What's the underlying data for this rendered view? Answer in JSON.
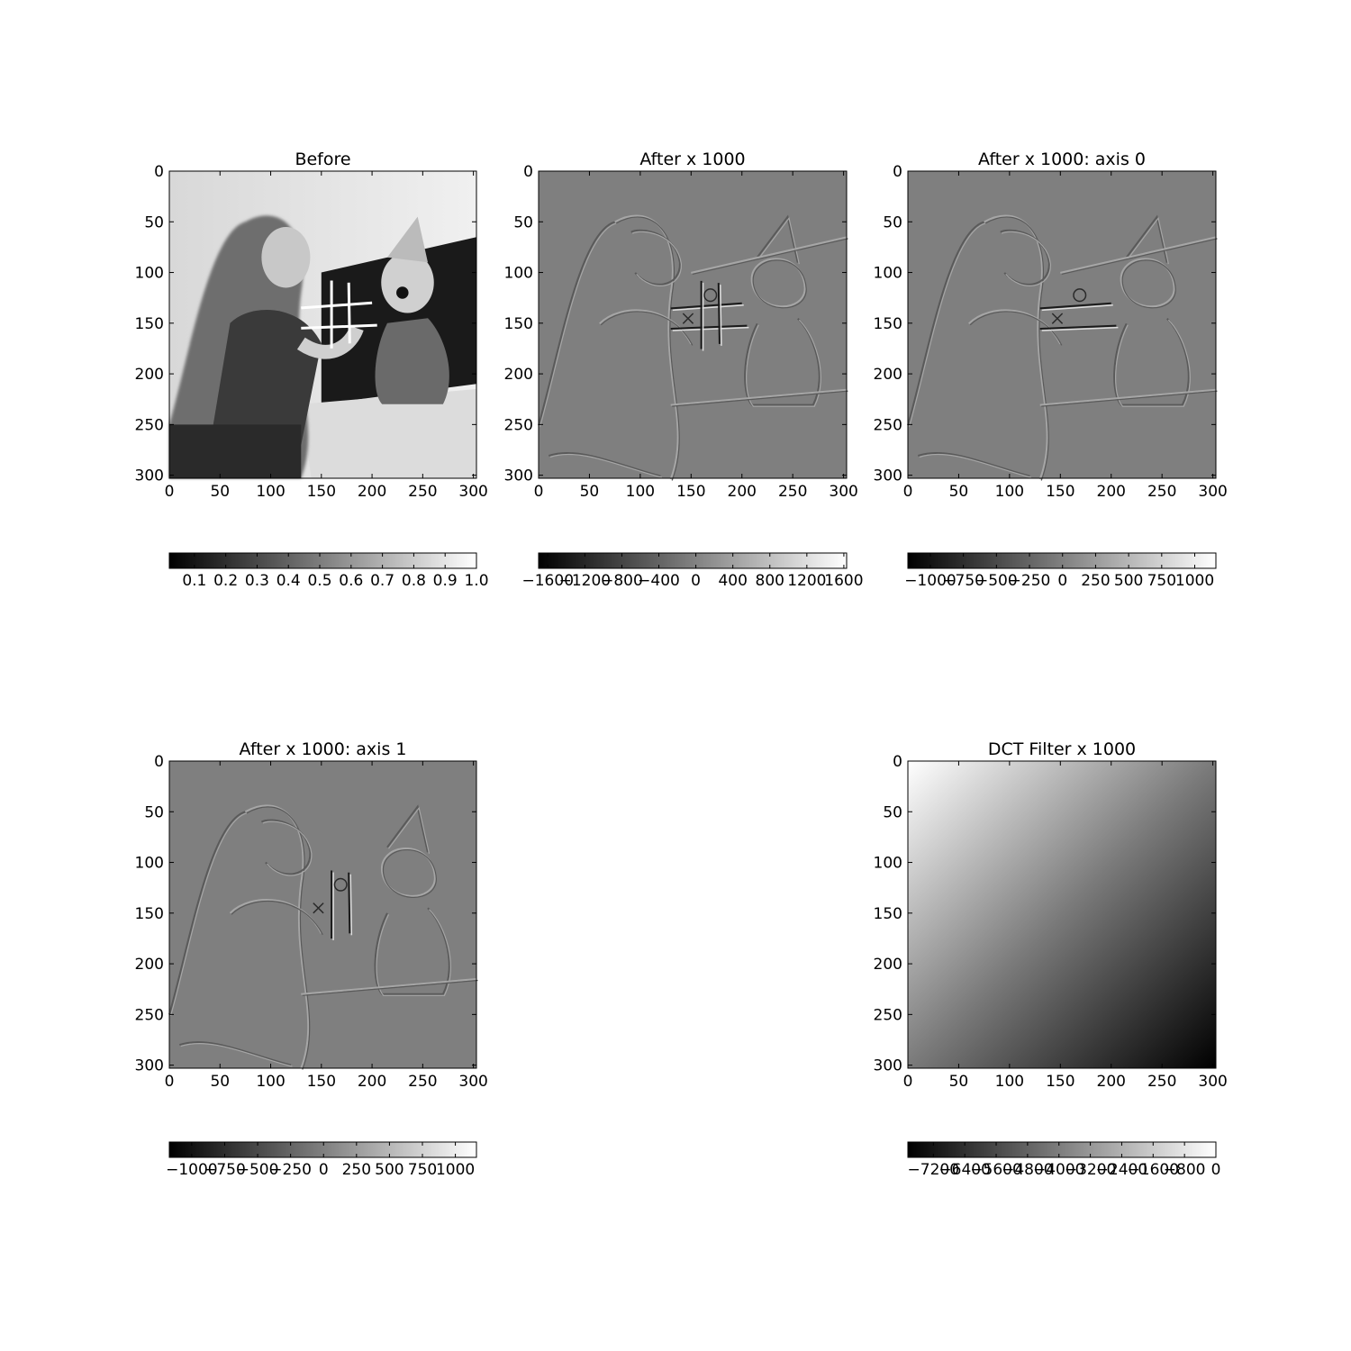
{
  "figure": {
    "background": "#ffffff"
  },
  "chart_data": [
    {
      "type": "heatmap",
      "title": "Before",
      "image": "grayscale photograph: girl with clown doll next to a tic-tac-toe board",
      "xlim": [
        0,
        303
      ],
      "ylim": [
        303,
        0
      ],
      "xticks": [
        0,
        50,
        100,
        150,
        200,
        250,
        300
      ],
      "yticks": [
        0,
        50,
        100,
        150,
        200,
        250,
        300
      ],
      "colormap": "gray",
      "colorbar": {
        "orientation": "horizontal",
        "range": [
          0.02,
          1.0
        ],
        "ticks": [
          0.1,
          0.2,
          0.3,
          0.4,
          0.5,
          0.6,
          0.7,
          0.8,
          0.9,
          1.0
        ],
        "tick_labels": [
          "0.1",
          "0.2",
          "0.3",
          "0.4",
          "0.5",
          "0.6",
          "0.7",
          "0.8",
          "0.9",
          "1.0"
        ]
      }
    },
    {
      "type": "heatmap",
      "title": "After x 1000",
      "image": "edge response of the photograph on a mid-gray background",
      "xlim": [
        0,
        303
      ],
      "ylim": [
        303,
        0
      ],
      "xticks": [
        0,
        50,
        100,
        150,
        200,
        250,
        300
      ],
      "yticks": [
        0,
        50,
        100,
        150,
        200,
        250,
        300
      ],
      "colormap": "gray",
      "colorbar": {
        "orientation": "horizontal",
        "range": [
          -1700,
          1630
        ],
        "ticks": [
          -1600,
          -1200,
          -800,
          -400,
          0,
          400,
          800,
          1200,
          1600
        ],
        "tick_labels": [
          "−1600",
          "−1200",
          "−800",
          "−400",
          "0",
          "400",
          "800",
          "1200",
          "1600"
        ]
      }
    },
    {
      "type": "heatmap",
      "title": "After x 1000: axis 0",
      "image": "horizontal-edge response on a mid-gray background",
      "xlim": [
        0,
        303
      ],
      "ylim": [
        303,
        0
      ],
      "xticks": [
        0,
        50,
        100,
        150,
        200,
        250,
        300
      ],
      "yticks": [
        0,
        50,
        100,
        150,
        200,
        250,
        300
      ],
      "colormap": "gray",
      "colorbar": {
        "orientation": "horizontal",
        "range": [
          -1170,
          1160
        ],
        "ticks": [
          -1000,
          -750,
          -500,
          -250,
          0,
          250,
          500,
          750,
          1000
        ],
        "tick_labels": [
          "−1000",
          "−750",
          "−500",
          "−250",
          "0",
          "250",
          "500",
          "750",
          "1000"
        ]
      }
    },
    {
      "type": "heatmap",
      "title": "After x 1000: axis 1",
      "image": "vertical-edge response on a mid-gray background",
      "xlim": [
        0,
        303
      ],
      "ylim": [
        303,
        0
      ],
      "xticks": [
        0,
        50,
        100,
        150,
        200,
        250,
        300
      ],
      "yticks": [
        0,
        50,
        100,
        150,
        200,
        250,
        300
      ],
      "colormap": "gray",
      "colorbar": {
        "orientation": "horizontal",
        "range": [
          -1170,
          1160
        ],
        "ticks": [
          -1000,
          -750,
          -500,
          -250,
          0,
          250,
          500,
          750,
          1000
        ],
        "tick_labels": [
          "−1000",
          "−750",
          "−500",
          "−250",
          "0",
          "250",
          "500",
          "750",
          "1000"
        ]
      }
    },
    {
      "type": "heatmap",
      "title": "DCT Filter x 1000",
      "image": "smooth diagonal gradient, white at top-left to black at bottom-right",
      "xlim": [
        0,
        303
      ],
      "ylim": [
        303,
        0
      ],
      "xticks": [
        0,
        50,
        100,
        150,
        200,
        250,
        300
      ],
      "yticks": [
        0,
        50,
        100,
        150,
        200,
        250,
        300
      ],
      "colormap": "gray",
      "colorbar": {
        "orientation": "horizontal",
        "range": [
          -7850,
          0
        ],
        "ticks": [
          -7200,
          -6400,
          -5600,
          -4800,
          -4000,
          -3200,
          -2400,
          -1600,
          -800,
          0
        ],
        "tick_labels": [
          "−7200",
          "−6400",
          "−5600",
          "−4800",
          "−4000",
          "−3200",
          "−2400",
          "−1600",
          "−800",
          "0"
        ]
      }
    }
  ]
}
